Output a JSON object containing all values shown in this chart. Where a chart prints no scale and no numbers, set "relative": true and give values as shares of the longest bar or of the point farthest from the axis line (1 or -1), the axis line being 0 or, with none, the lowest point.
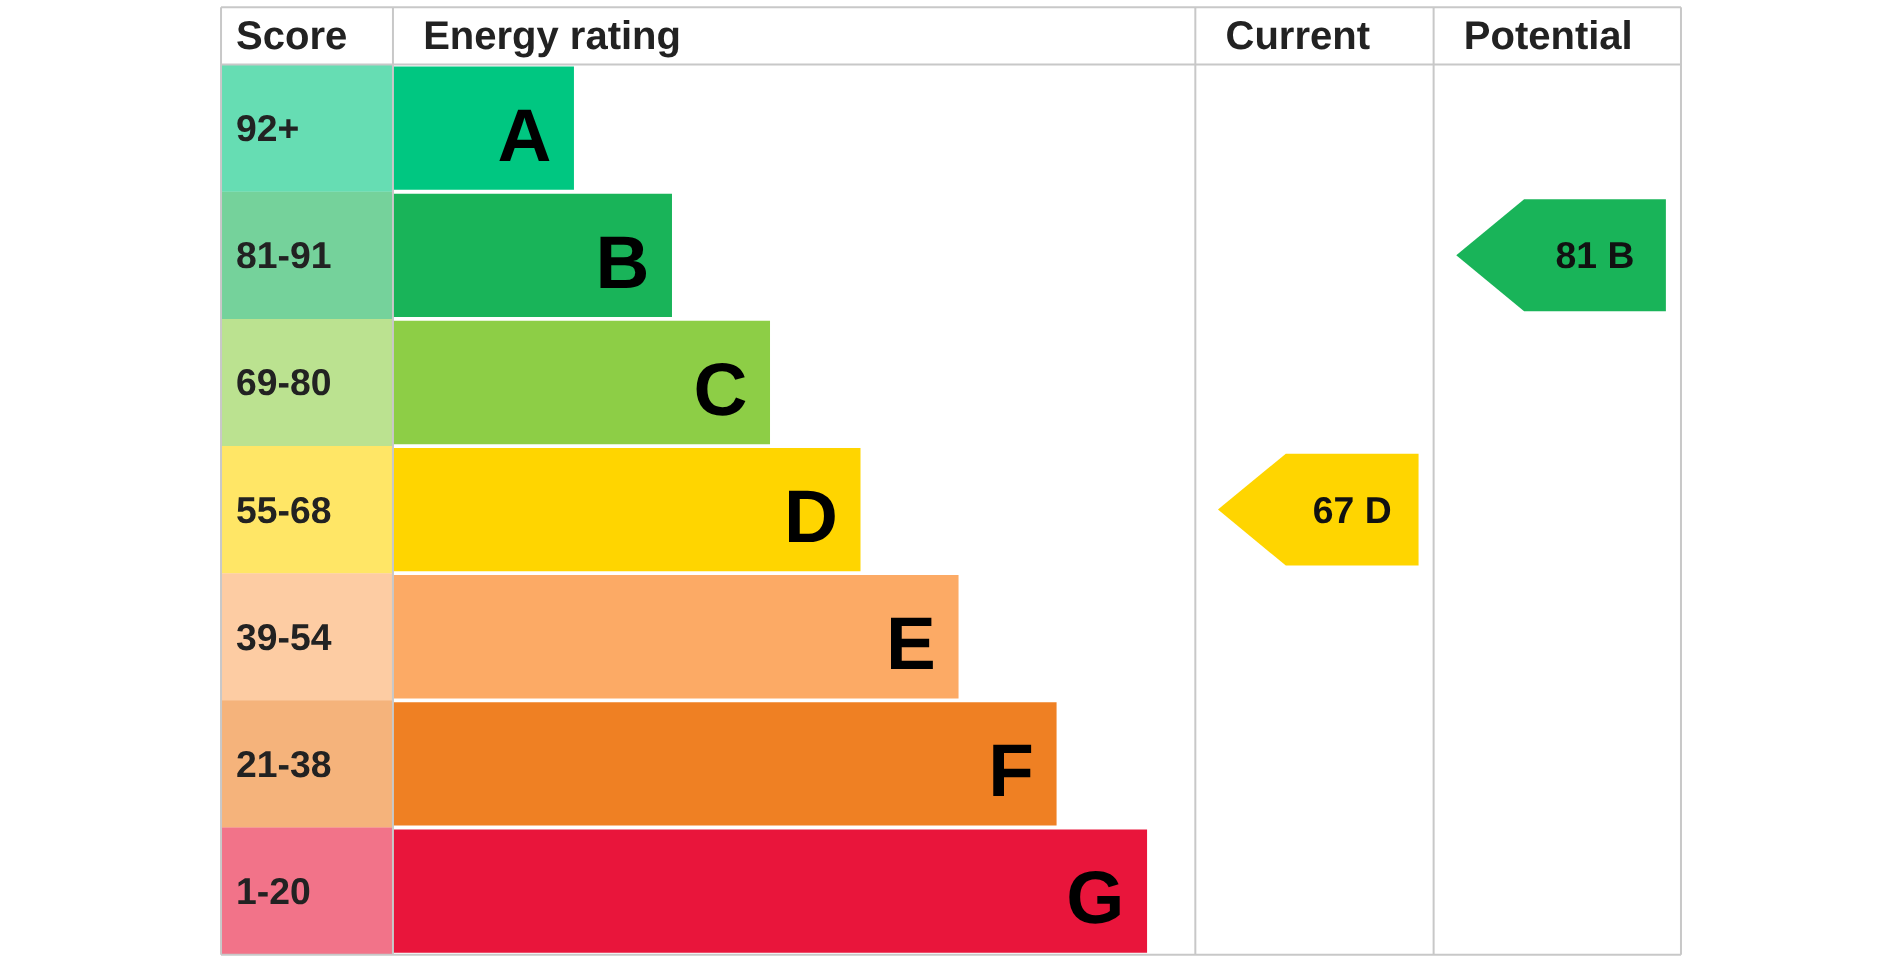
{
  "chart_data": {
    "type": "bar",
    "orientation": "horizontal",
    "relative": true,
    "grid": false,
    "categories": [
      "92+",
      "81-91",
      "69-80",
      "55-68",
      "39-54",
      "21-38",
      "1-20"
    ],
    "values": [
      0.24,
      0.37,
      0.5,
      0.62,
      0.75,
      0.88,
      1.0
    ],
    "colors": [
      "#00c781",
      "#19b459",
      "#8dce46",
      "#ffd500",
      "#fcaa65",
      "#ef8023",
      "#e9153b"
    ],
    "annotations": [
      "Score",
      "Energy rating",
      "Current",
      "Potential",
      {
        "text": "A",
        "x": 0.24,
        "y": "92+"
      },
      {
        "text": "B",
        "x": 0.37,
        "y": "81-91"
      },
      {
        "text": "C",
        "x": 0.5,
        "y": "69-80"
      },
      {
        "text": "D",
        "x": 0.62,
        "y": "55-68"
      },
      {
        "text": "E",
        "x": 0.75,
        "y": "39-54"
      },
      {
        "text": "F",
        "x": 0.88,
        "y": "21-38"
      },
      {
        "text": "G",
        "x": 1.0,
        "y": "1-20"
      },
      "67 D",
      "81 B"
    ]
  }
}
